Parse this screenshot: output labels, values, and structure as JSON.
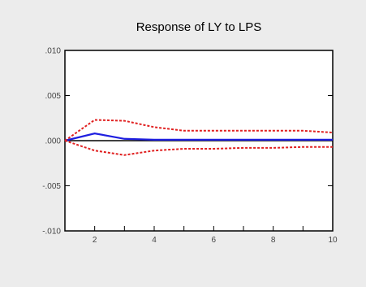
{
  "chart_data": {
    "type": "line",
    "title": "Response of LY to LPS",
    "xlabel": "",
    "ylabel": "",
    "x": [
      1,
      2,
      3,
      4,
      5,
      6,
      7,
      8,
      9,
      10
    ],
    "xlim": [
      1,
      10
    ],
    "ylim": [
      -0.01,
      0.01
    ],
    "x_ticks": [
      2,
      4,
      6,
      8,
      10
    ],
    "x_tick_labels": [
      "2",
      "4",
      "6",
      "8",
      "10"
    ],
    "y_ticks": [
      0.01,
      0.005,
      0.0,
      -0.005,
      -0.01
    ],
    "y_tick_labels": [
      ".010",
      ".005",
      ".000",
      "-.005",
      "-.010"
    ],
    "grid": false,
    "legend": "none",
    "series": [
      {
        "role": "response",
        "values": [
          0.0,
          0.0008,
          0.0002,
          0.0001,
          0.0001,
          0.0001,
          0.0001,
          0.0001,
          0.0001,
          0.0001
        ],
        "color": "#1f1fe0",
        "dashed": false
      },
      {
        "role": "upper-band",
        "values": [
          0.0,
          0.0023,
          0.0022,
          0.0015,
          0.0011,
          0.0011,
          0.0011,
          0.0011,
          0.0011,
          0.0009
        ],
        "color": "#e02020",
        "dashed": true
      },
      {
        "role": "lower-band",
        "values": [
          0.0,
          -0.0011,
          -0.0016,
          -0.0011,
          -0.0009,
          -0.0009,
          -0.0008,
          -0.0008,
          -0.0007,
          -0.0007
        ],
        "color": "#e02020",
        "dashed": true
      }
    ],
    "zero_line_color": "#000000",
    "axis_color": "#000000"
  }
}
